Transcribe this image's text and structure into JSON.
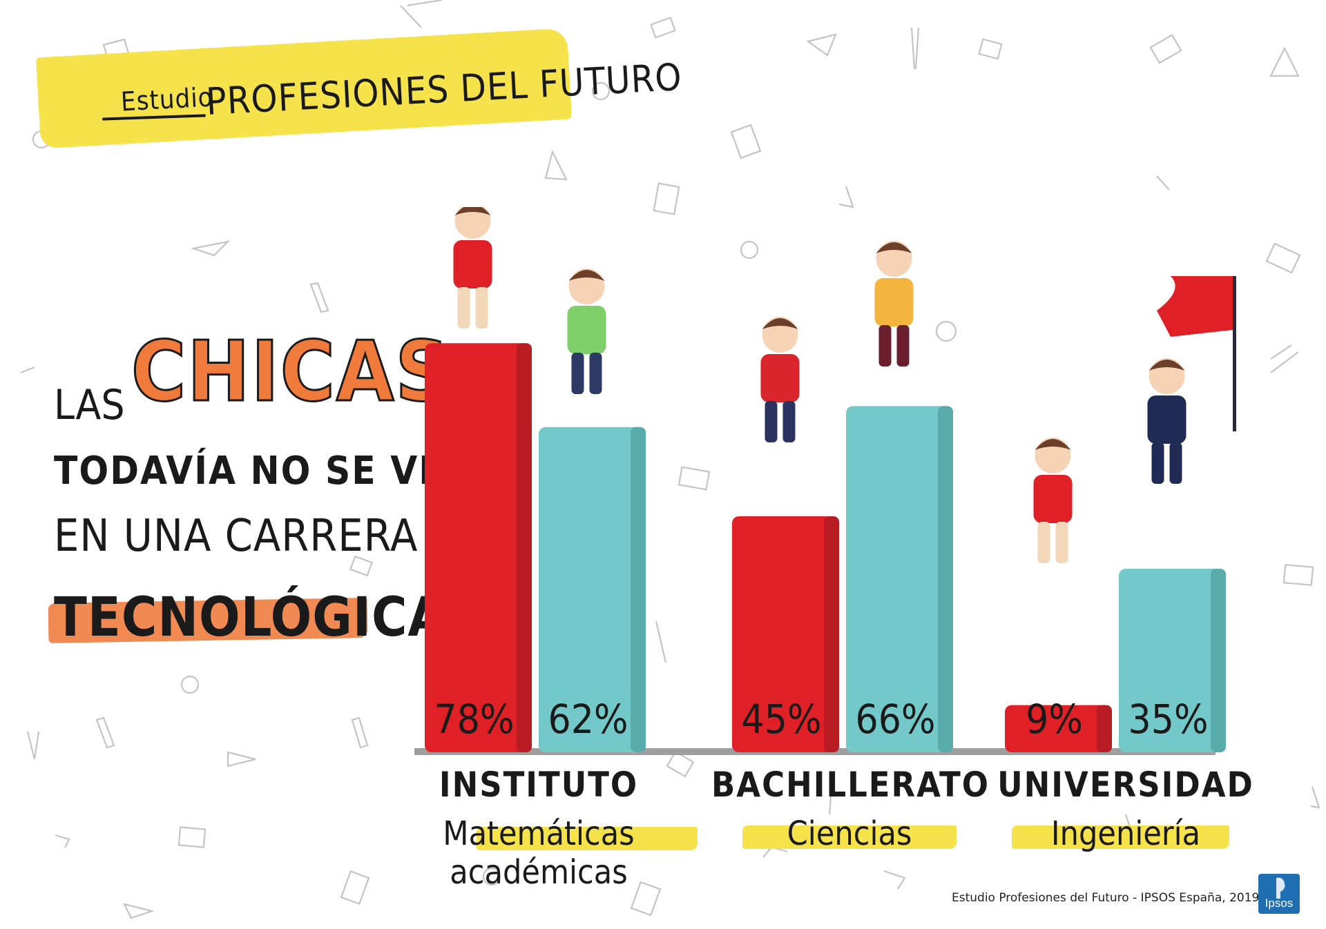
{
  "header": {
    "pre_title": "Estudio",
    "title": "PROFESIONES DEL FUTURO"
  },
  "headline": {
    "line1": "LAS",
    "highlight": "CHICAS",
    "line2": "TODAVÍA NO SE VEN",
    "line3": "EN UNA CARRERA",
    "line4": "TECNOLÓGICA"
  },
  "colors": {
    "girls": "#e02027",
    "boys": "#73c9ca",
    "accent_yellow": "#f6e24a",
    "accent_orange": "#f08a52"
  },
  "chart_data": {
    "type": "bar",
    "categories": [
      "INSTITUTO",
      "BACHILLERATO",
      "UNIVERSIDAD"
    ],
    "subcategories": [
      "Matemáticas académicas",
      "Ciencias",
      "Ingeniería"
    ],
    "series": [
      {
        "values": [
          78,
          45,
          9
        ],
        "labels": [
          "78%",
          "45%",
          "9%"
        ],
        "color": "#e02027"
      },
      {
        "values": [
          62,
          66,
          35
        ],
        "labels": [
          "62%",
          "66%",
          "35%"
        ],
        "color": "#73c9ca"
      }
    ],
    "ylim": [
      0,
      100
    ],
    "grid": false
  },
  "source": "Estudio Profesiones del Futuro - IPSOS España, 2019",
  "logo": {
    "text": "Ipsos"
  }
}
